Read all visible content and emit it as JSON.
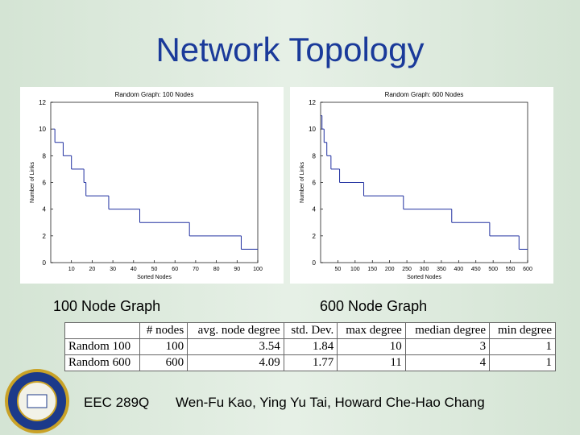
{
  "title": "Network Topology",
  "chart_data": [
    {
      "type": "step",
      "title": "Random Graph: 100 Nodes",
      "x_label": "Sorted Nodes",
      "y_label": "Number of Links",
      "x": [
        1,
        2,
        6,
        10,
        16,
        17,
        28,
        43,
        67,
        92
      ],
      "values": [
        10,
        9,
        8,
        7,
        6,
        5,
        4,
        3,
        2,
        1
      ],
      "color": "#2030a0",
      "xlim": [
        0,
        100
      ],
      "xticks": [
        10,
        20,
        30,
        40,
        50,
        60,
        70,
        80,
        90,
        100
      ],
      "ylim": [
        0,
        12
      ],
      "yticks": [
        0,
        2,
        4,
        6,
        8,
        10,
        12
      ]
    },
    {
      "type": "step",
      "title": "Random Graph: 600 Nodes",
      "x_label": "Sorted Nodes",
      "y_label": "Number of Links",
      "x": [
        1,
        4,
        10,
        18,
        30,
        55,
        125,
        240,
        380,
        490,
        575
      ],
      "values": [
        11,
        10,
        9,
        8,
        7,
        6,
        5,
        4,
        3,
        2,
        1
      ],
      "color": "#2030a0",
      "xlim": [
        0,
        600
      ],
      "xticks": [
        50,
        100,
        150,
        200,
        250,
        300,
        350,
        400,
        450,
        500,
        550,
        600
      ],
      "ylim": [
        0,
        12
      ],
      "yticks": [
        0,
        2,
        4,
        6,
        8,
        10,
        12
      ]
    }
  ],
  "captions": [
    "100 Node Graph",
    "600 Node Graph"
  ],
  "table": {
    "columns": [
      "# nodes",
      "avg. node degree",
      "std. Dev.",
      "max degree",
      "median degree",
      "min degree"
    ],
    "rows": [
      [
        "Random 100",
        100,
        3.54,
        1.84,
        10,
        3,
        1
      ],
      [
        "Random 600",
        600,
        4.09,
        1.77,
        11,
        4,
        1
      ]
    ]
  },
  "footer": {
    "course": "EEC 289Q",
    "authors": "Wen-Fu Kao,  Ying Yu Tai,  Howard Che-Hao Chang"
  }
}
